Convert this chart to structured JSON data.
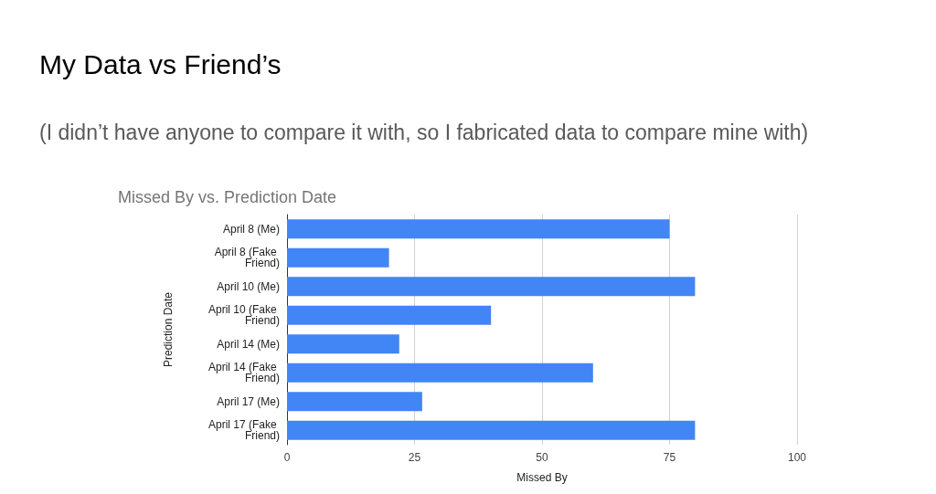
{
  "chart_data": {
    "type": "bar",
    "orientation": "horizontal",
    "title": "My Data vs Friend’s",
    "subtitle": "(I didn’t have anyone to compare it with, so I fabricated data to compare mine with)",
    "annotations": [
      "Missed By vs. Prediction Date"
    ],
    "xlabel": "Missed By",
    "ylabel": "Prediction Date",
    "categories": [
      "April 8 (Me)",
      "April 8 (Fake Friend)",
      "April 10 (Me)",
      "April 10 (Fake Friend)",
      "April 14 (Me)",
      "April 14 (Fake Friend)",
      "April 17 (Me)",
      "April 17 (Fake Friend)"
    ],
    "values": [
      75,
      20,
      80,
      40,
      22,
      60,
      26.5,
      80
    ],
    "color": "#4285f4",
    "xlim": [
      0,
      100
    ],
    "xticks": [
      0,
      25,
      50,
      75,
      100
    ],
    "grid": "x"
  }
}
